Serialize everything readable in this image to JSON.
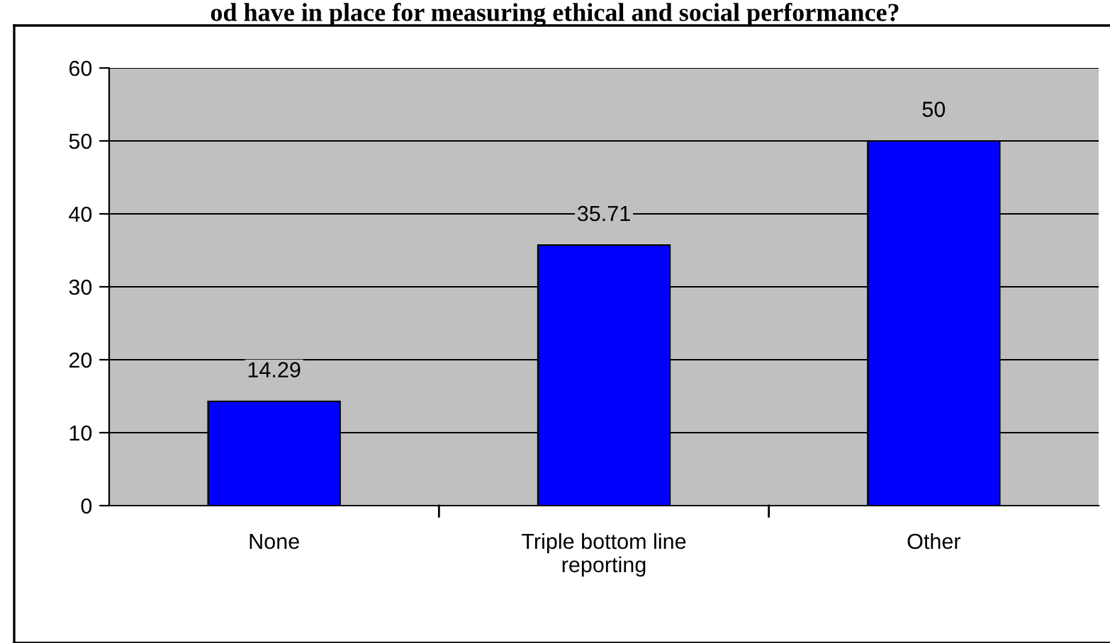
{
  "chart_data": {
    "type": "bar",
    "title": "od have in place for measuring ethical and social performance?",
    "categories": [
      "None",
      "Triple bottom line\nreporting",
      "Other"
    ],
    "values": [
      14.29,
      35.71,
      50
    ],
    "color": "#0000ff",
    "data_labels": true,
    "ylim": [
      0,
      60
    ],
    "yticks": [
      0,
      10,
      20,
      30,
      40,
      50,
      60
    ],
    "grid": "y"
  }
}
